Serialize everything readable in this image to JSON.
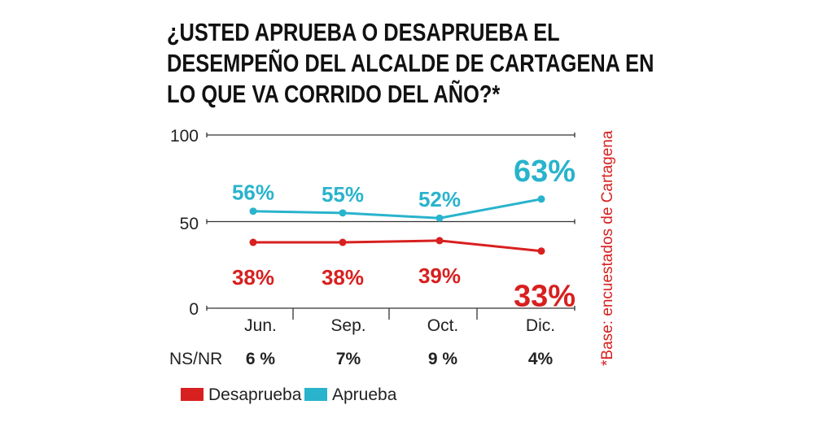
{
  "chart_data": {
    "type": "line",
    "title": [
      "¿USTED APRUEBA O DESAPRUEBA EL",
      "DESEMPEÑO DEL ALCALDE DE CARTAGENA EN",
      "LO QUE VA CORRIDO DEL AÑO?*"
    ],
    "categories": [
      "Jun.",
      "Sep.",
      "Oct.",
      "Dic."
    ],
    "yticks": [
      "0",
      "50",
      "100"
    ],
    "ylim": [
      0,
      100
    ],
    "grid": true,
    "series": [
      {
        "name": "Aprueba",
        "color": "#29b3cc",
        "values": [
          56,
          55,
          52,
          63
        ],
        "labels": [
          "56%",
          "55%",
          "52%",
          "63%"
        ]
      },
      {
        "name": "Desaprueba",
        "color": "#d7201f",
        "values": [
          38,
          38,
          39,
          33
        ],
        "labels": [
          "38%",
          "38%",
          "39%",
          "33%"
        ]
      }
    ],
    "nsnr": {
      "label": "NS/NR",
      "values": [
        "6 %",
        "7%",
        "9 %",
        "4%"
      ]
    },
    "note": "*Base: encuestados de Cartagena",
    "legend": [
      {
        "name": "Desaprueba",
        "color": "#d7201f"
      },
      {
        "name": "Aprueba",
        "color": "#29b3cc"
      }
    ],
    "legend_position": "bottom-left"
  }
}
